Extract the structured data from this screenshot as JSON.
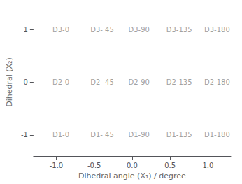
{
  "chart_data": {
    "type": "scatter",
    "title": "",
    "xlabel": "Dihedral angle (X₁) / degree",
    "ylabel": "Dihedral (X₂)",
    "xlim": [
      -1.3,
      1.3
    ],
    "ylim": [
      -1.4,
      1.4
    ],
    "xticks": [
      {
        "value": -1.0,
        "label": "-1.0"
      },
      -0.5,
      {
        "value": 0.0,
        "label": "0.0"
      },
      0.5,
      {
        "value": 1.0,
        "label": "1.0"
      }
    ],
    "yticks": [
      -1,
      0,
      1
    ],
    "x": [
      -1.05,
      -0.55,
      -0.05,
      0.45,
      0.95,
      -1.05,
      -0.55,
      -0.05,
      0.45,
      0.95,
      -1.05,
      -0.55,
      -0.05,
      0.45,
      0.95
    ],
    "values": [
      1.0,
      1.0,
      1.0,
      1.0,
      1.0,
      0.0,
      0.0,
      0.0,
      0.0,
      0.0,
      -1.0,
      -1.0,
      -1.0,
      -1.0,
      -1.0
    ],
    "labels": [
      "D3-0",
      "D3- 45",
      "D3-90",
      "D3-135",
      "D3-180",
      "D2-0",
      "D2- 45",
      "D2-90",
      "D2-135",
      "D2-180",
      "D1-0",
      "D1- 45",
      "D1-90",
      "D1-135",
      "D1-180"
    ],
    "color": "#888888",
    "marker": "none",
    "grid": false
  }
}
